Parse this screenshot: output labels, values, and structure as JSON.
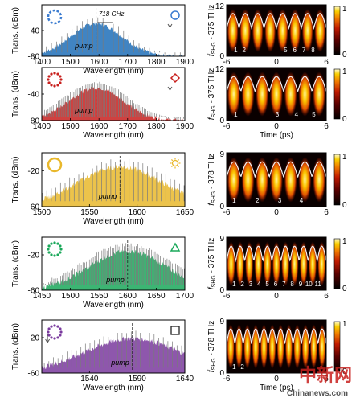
{
  "chart_data": [
    {
      "type": "line",
      "xlabel": "Wavelength (nm)",
      "ylabel": "Trans. (dBm)",
      "xlim": [
        1400,
        1900
      ],
      "ylim": [
        -80,
        0
      ],
      "xticks": [
        1400,
        1500,
        1600,
        1700,
        1800,
        1900
      ],
      "yticks": [
        -40,
        -80
      ],
      "color": "#1f6fb8",
      "symbol": "circle",
      "ring": "dashed",
      "marker_circle_color": "#3a7bd0",
      "center": 1590,
      "peak": -20,
      "base": -80,
      "hw": 160,
      "spacing": 18,
      "annotations": {
        "spacing_label": "718 GHz",
        "pump": "pump"
      },
      "arrow_at": 1848
    },
    {
      "type": "line",
      "xlabel": "Wavelength (nm)",
      "ylabel": "Trans. (dBm)",
      "xlim": [
        1400,
        1900
      ],
      "ylim": [
        -80,
        0
      ],
      "xticks": [
        1400,
        1500,
        1600,
        1700,
        1800,
        1900
      ],
      "yticks": [
        -40,
        -80
      ],
      "color": "#c8201e",
      "symbol": "diamond",
      "ring": "dots",
      "marker_circle_color": "#c8201e",
      "center": 1590,
      "peak": -22,
      "base": -80,
      "hw": 170,
      "spacing": 6,
      "annotations": {
        "pump": "pump"
      },
      "arrow_at": 1848
    },
    {
      "type": "line",
      "xlabel": "Wavelength (nm)",
      "ylabel": "Trans. (dBm)",
      "xlim": [
        1500,
        1650
      ],
      "ylim": [
        -60,
        0
      ],
      "xticks": [
        1500,
        1550,
        1600,
        1650
      ],
      "yticks": [
        -20,
        -60
      ],
      "color": "#e9b82c",
      "symbol": "sun",
      "ring": "solid",
      "marker_circle_color": "#e9b82c",
      "center": 1582,
      "peak": -8,
      "base": -60,
      "hw": 80,
      "spacing": 4.8,
      "annotations": {
        "pump": "pump"
      },
      "arrow_at": null
    },
    {
      "type": "line",
      "xlabel": "Wavelength (nm)",
      "ylabel": "Trans. (dBm)",
      "xlim": [
        1450,
        1700
      ],
      "ylim": [
        -60,
        0
      ],
      "xticks": [
        1450,
        1500,
        1550,
        1600,
        1650,
        1700
      ],
      "yticks": [
        -20,
        -60
      ],
      "color": "#1aa85a",
      "symbol": "triangle",
      "ring": "dots",
      "marker_circle_color": "#1aa85a",
      "center": 1600,
      "peak": -8,
      "base": -60,
      "hw": 120,
      "spacing": 3,
      "annotations": {
        "pump": "pump"
      },
      "arrow_at": null
    },
    {
      "type": "line",
      "xlabel": "Wavelength (nm)",
      "ylabel": "Trans. (dBm)",
      "xlim": [
        1490,
        1640
      ],
      "ylim": [
        -60,
        0
      ],
      "xticks": [
        1540,
        1590,
        1640
      ],
      "yticks": [
        -20,
        -60
      ],
      "color": "#7a3a9e",
      "symbol": "square",
      "ring": "dots",
      "marker_circle_color": "#7a3a9e",
      "center": 1585,
      "peak": -14,
      "base": -60,
      "hw": 90,
      "spacing": 4.8,
      "annotations": {
        "pump": "pump"
      },
      "arrow_at": 1496
    },
    {
      "type": "heatmap",
      "xlabel": "Time (ps)",
      "ylabel": "f_SHG - 375 THz",
      "ylabel_main": "f",
      "ylabel_sub": "SHG",
      "ylabel_rest": " - 375 THz",
      "xlim": [
        -6,
        6
      ],
      "xticks": [
        -6,
        0,
        6
      ],
      "yticks": [
        12,
        0
      ],
      "colorbar": {
        "ticks": [
          1,
          0
        ]
      },
      "pulse_labels": [
        "1",
        "2",
        "5",
        "6",
        "7",
        "8"
      ],
      "label_pos": [
        -4.9,
        -3.9,
        1.1,
        2.2,
        3.3,
        4.4
      ]
    },
    {
      "type": "heatmap",
      "xlabel": "Time (ps)",
      "ylabel": "f_SHG - 375 THz",
      "ylabel_main": "f",
      "ylabel_sub": "SHG",
      "ylabel_rest": " - 375 THz",
      "xlim": [
        -6,
        6
      ],
      "xticks": [
        -6,
        0,
        6
      ],
      "yticks": [
        12,
        0
      ],
      "colorbar": {
        "ticks": [
          1,
          0
        ]
      },
      "pulse_labels": [
        "1",
        "3",
        "4",
        "5"
      ],
      "label_pos": [
        -4.9,
        0.1,
        2.4,
        4.5
      ]
    },
    {
      "type": "heatmap",
      "xlabel": "Time (ps)",
      "ylabel": "f_SHG - 378 THz",
      "ylabel_main": "f",
      "ylabel_sub": "SHG",
      "ylabel_rest": " - 378 THz",
      "xlim": [
        -6,
        6
      ],
      "xticks": [
        -6,
        0,
        6
      ],
      "yticks": [
        9,
        0
      ],
      "colorbar": {
        "ticks": [
          1,
          0
        ]
      },
      "pulse_labels": [
        "1",
        "2",
        "3",
        "4"
      ],
      "label_pos": [
        -5.1,
        -2.3,
        0.4,
        3.0
      ]
    },
    {
      "type": "heatmap",
      "xlabel": "Time (ps)",
      "ylabel": "f_SHG - 375 THz",
      "ylabel_main": "f",
      "ylabel_sub": "SHG",
      "ylabel_rest": " - 375 THz",
      "xlim": [
        -6,
        6
      ],
      "xticks": [
        -6,
        0,
        6
      ],
      "yticks": [
        9,
        0
      ],
      "colorbar": {
        "ticks": [
          1,
          0
        ]
      },
      "pulse_labels": [
        "1",
        "2",
        "3",
        "4",
        "5",
        "6",
        "7",
        "8",
        "9",
        "10",
        "11"
      ],
      "label_pos": [
        -5.1,
        -4.1,
        -3.1,
        -2.1,
        -1.1,
        -0.1,
        0.9,
        1.9,
        2.9,
        3.9,
        5.0
      ]
    },
    {
      "type": "heatmap",
      "xlabel": "Time (ps)",
      "ylabel": "f_SHG - 378 THz",
      "ylabel_main": "f",
      "ylabel_sub": "SHG",
      "ylabel_rest": " - 378 THz",
      "xlim": [
        -6,
        6
      ],
      "xticks": [
        -6,
        0,
        6
      ],
      "yticks": [
        9,
        0
      ],
      "colorbar": {
        "ticks": [
          1,
          0
        ]
      },
      "pulse_labels": [
        "1",
        "2"
      ],
      "label_pos": [
        -5.1,
        -4.1
      ]
    }
  ],
  "watermark": {
    "brand_cn": "中新网",
    "brand_en": "Chinanews.com"
  }
}
